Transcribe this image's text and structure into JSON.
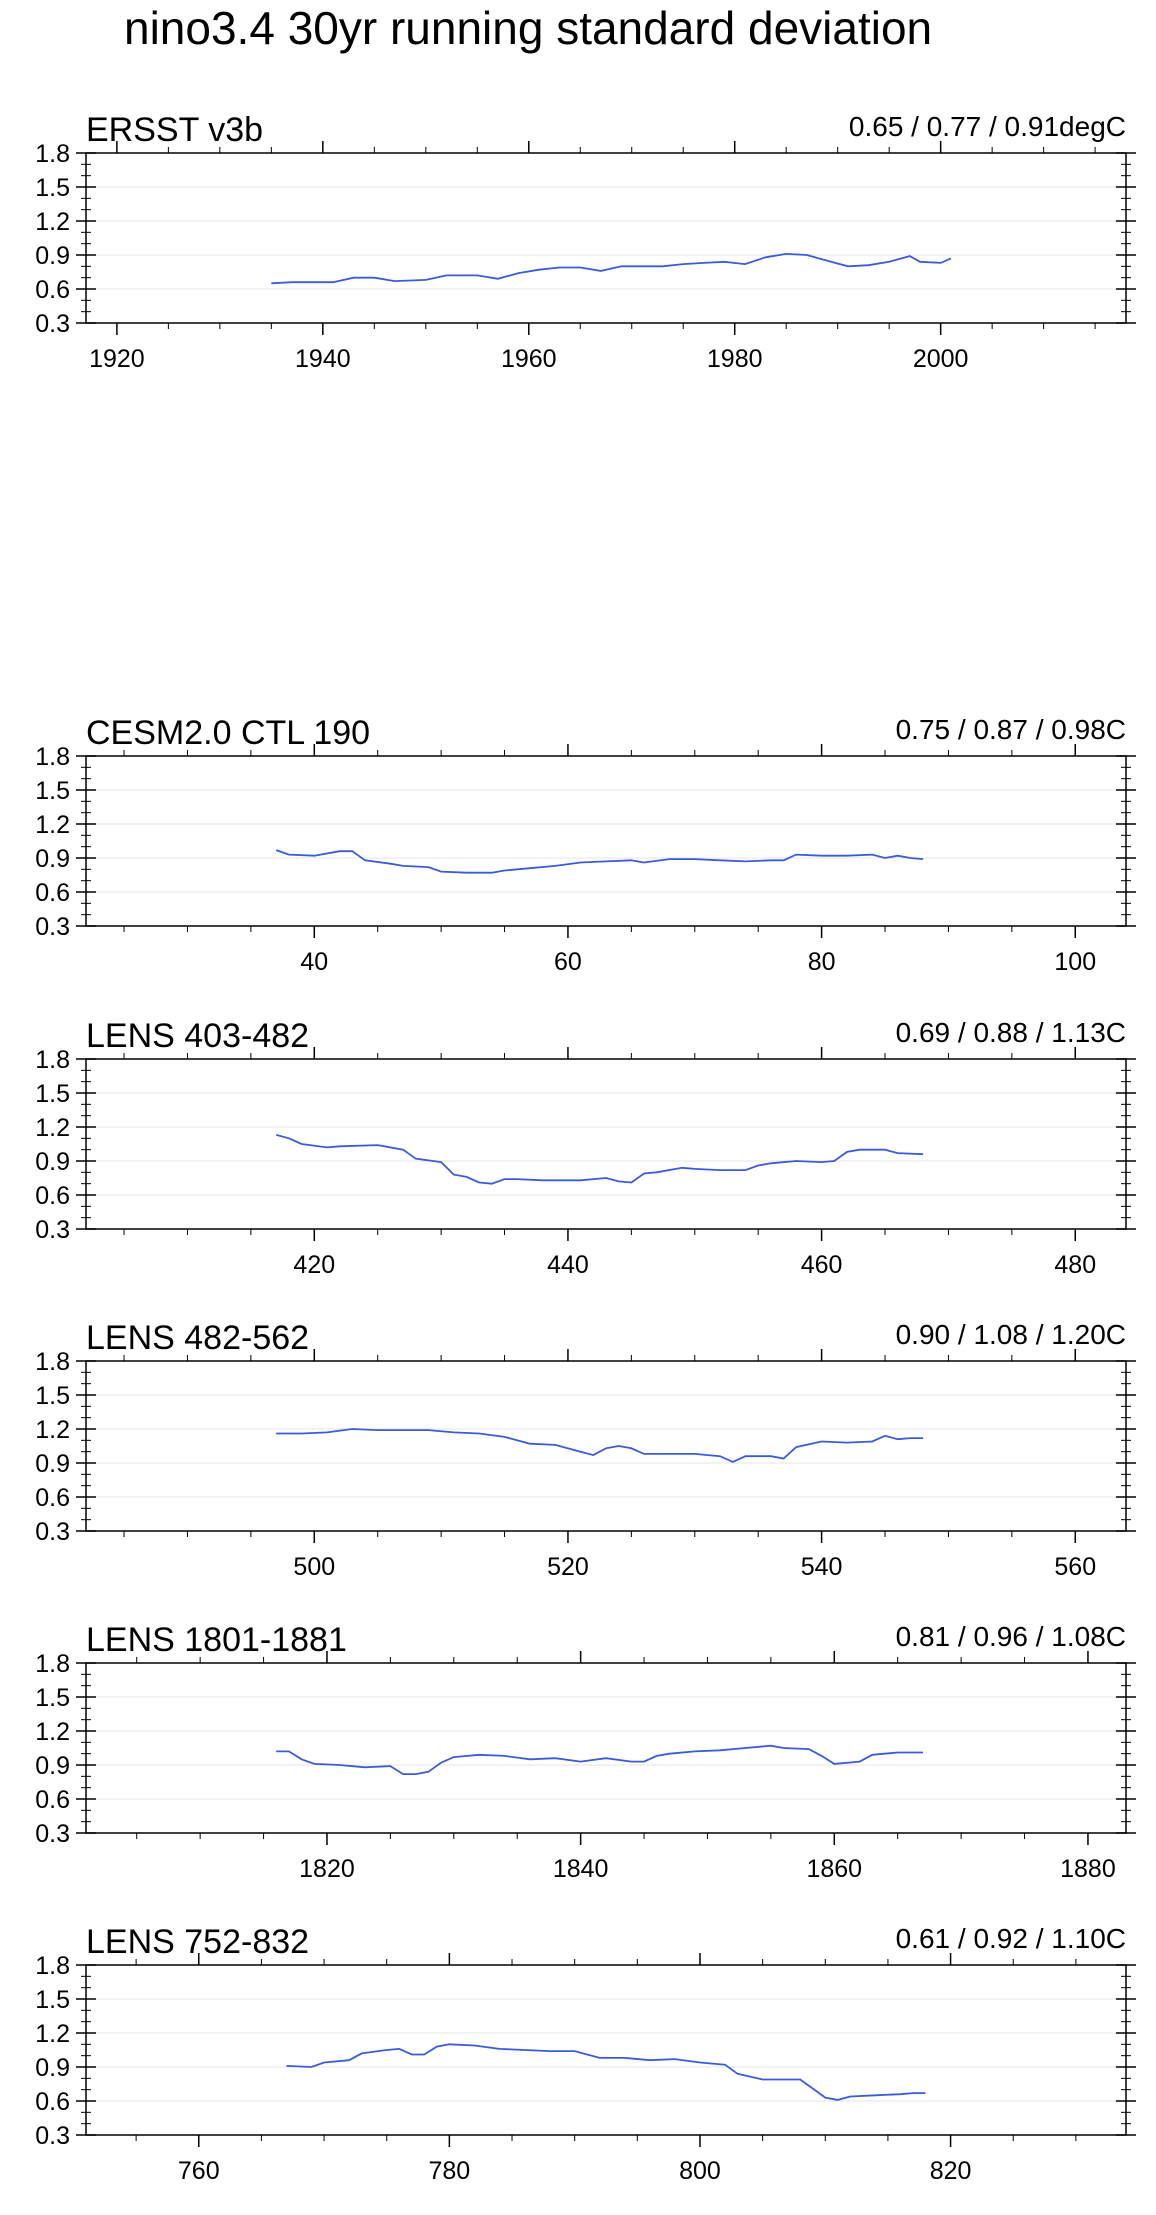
{
  "title": "nino3.4 30yr running standard deviation",
  "line_color": "#3b5bdb",
  "chart_data": [
    {
      "type": "line",
      "label_left": "ERSST v3b",
      "label_right": "0.65 / 0.77 / 0.91degC",
      "xlim": [
        1917,
        2018
      ],
      "ylim": [
        0.3,
        1.8
      ],
      "yticks": [
        "0.3",
        "0.6",
        "0.9",
        "1.2",
        "1.5",
        "1.8"
      ],
      "xticks": [
        1920,
        1940,
        1960,
        1980,
        2000
      ],
      "grid": true,
      "x": [
        1935,
        1937,
        1939,
        1941,
        1943,
        1945,
        1947,
        1950,
        1952,
        1955,
        1957,
        1959,
        1961,
        1963,
        1965,
        1967,
        1969,
        1971,
        1973,
        1975,
        1977,
        1979,
        1981,
        1983,
        1985,
        1987,
        1989,
        1991,
        1993,
        1995,
        1997,
        1998,
        2000,
        2001
      ],
      "y": [
        0.65,
        0.66,
        0.66,
        0.66,
        0.7,
        0.7,
        0.67,
        0.68,
        0.72,
        0.72,
        0.69,
        0.74,
        0.77,
        0.79,
        0.79,
        0.76,
        0.8,
        0.8,
        0.8,
        0.82,
        0.83,
        0.84,
        0.82,
        0.88,
        0.91,
        0.9,
        0.85,
        0.8,
        0.81,
        0.84,
        0.89,
        0.84,
        0.83,
        0.87
      ]
    },
    {
      "type": "line",
      "label_left": "CESM2.0 CTL 190",
      "label_right": "0.75 / 0.87 / 0.98C",
      "xlim": [
        22,
        104
      ],
      "ylim": [
        0.3,
        1.8
      ],
      "yticks": [
        "0.3",
        "0.6",
        "0.9",
        "1.2",
        "1.5",
        "1.8"
      ],
      "xticks": [
        40,
        60,
        80,
        100
      ],
      "grid": true,
      "x": [
        37,
        38,
        40,
        42,
        43,
        44,
        46,
        47,
        49,
        50,
        52,
        54,
        55,
        57,
        59,
        61,
        63,
        65,
        66,
        68,
        70,
        72,
        74,
        76,
        77,
        78,
        80,
        82,
        84,
        85,
        86,
        87,
        88
      ],
      "y": [
        0.97,
        0.93,
        0.92,
        0.96,
        0.96,
        0.88,
        0.85,
        0.83,
        0.82,
        0.78,
        0.77,
        0.77,
        0.79,
        0.81,
        0.83,
        0.86,
        0.87,
        0.88,
        0.86,
        0.89,
        0.89,
        0.88,
        0.87,
        0.88,
        0.88,
        0.93,
        0.92,
        0.92,
        0.93,
        0.9,
        0.92,
        0.9,
        0.89
      ]
    },
    {
      "type": "line",
      "label_left": "LENS 403-482",
      "label_right": "0.69 / 0.88 / 1.13C",
      "xlim": [
        402,
        484
      ],
      "ylim": [
        0.3,
        1.8
      ],
      "yticks": [
        "0.3",
        "0.6",
        "0.9",
        "1.2",
        "1.5",
        "1.8"
      ],
      "xticks": [
        420,
        440,
        460,
        480
      ],
      "grid": true,
      "x": [
        417,
        418,
        419,
        421,
        422,
        425,
        427,
        428,
        430,
        431,
        432,
        433,
        434,
        435,
        436,
        438,
        440,
        441,
        443,
        444,
        445,
        446,
        447,
        449,
        450,
        452,
        454,
        455,
        456,
        458,
        460,
        461,
        462,
        463,
        465,
        466,
        468
      ],
      "y": [
        1.13,
        1.1,
        1.05,
        1.02,
        1.03,
        1.04,
        1.0,
        0.92,
        0.89,
        0.78,
        0.76,
        0.71,
        0.7,
        0.74,
        0.74,
        0.73,
        0.73,
        0.73,
        0.75,
        0.72,
        0.71,
        0.79,
        0.8,
        0.84,
        0.83,
        0.82,
        0.82,
        0.86,
        0.88,
        0.9,
        0.89,
        0.9,
        0.98,
        1.0,
        1.0,
        0.97,
        0.96
      ]
    },
    {
      "type": "line",
      "label_left": "LENS 482-562",
      "label_right": "0.90 / 1.08 / 1.20C",
      "xlim": [
        482,
        564
      ],
      "ylim": [
        0.3,
        1.8
      ],
      "yticks": [
        "0.3",
        "0.6",
        "0.9",
        "1.2",
        "1.5",
        "1.8"
      ],
      "xticks": [
        500,
        520,
        540,
        560
      ],
      "grid": true,
      "x": [
        497,
        499,
        501,
        503,
        505,
        507,
        509,
        511,
        513,
        515,
        517,
        519,
        521,
        522,
        523,
        524,
        525,
        526,
        528,
        530,
        532,
        533,
        534,
        536,
        537,
        538,
        540,
        542,
        544,
        545,
        546,
        547,
        548
      ],
      "y": [
        1.16,
        1.16,
        1.17,
        1.2,
        1.19,
        1.19,
        1.19,
        1.17,
        1.16,
        1.13,
        1.07,
        1.06,
        1.0,
        0.97,
        1.03,
        1.05,
        1.03,
        0.98,
        0.98,
        0.98,
        0.96,
        0.91,
        0.96,
        0.96,
        0.94,
        1.04,
        1.09,
        1.08,
        1.09,
        1.14,
        1.11,
        1.12,
        1.12
      ]
    },
    {
      "type": "line",
      "label_left": "LENS 1801-1881",
      "label_right": "0.81 / 0.96 / 1.08C",
      "xlim": [
        1801,
        1883
      ],
      "ylim": [
        0.3,
        1.8
      ],
      "yticks": [
        "0.3",
        "0.6",
        "0.9",
        "1.2",
        "1.5",
        "1.8"
      ],
      "xticks": [
        1820,
        1840,
        1860,
        1880
      ],
      "grid": true,
      "x": [
        1816,
        1817,
        1818,
        1819,
        1821,
        1823,
        1825,
        1826,
        1827,
        1828,
        1829,
        1830,
        1832,
        1834,
        1836,
        1838,
        1840,
        1842,
        1844,
        1845,
        1846,
        1847,
        1849,
        1851,
        1853,
        1855,
        1856,
        1858,
        1859,
        1860,
        1862,
        1863,
        1865,
        1867
      ],
      "y": [
        1.02,
        1.02,
        0.95,
        0.91,
        0.9,
        0.88,
        0.89,
        0.82,
        0.82,
        0.84,
        0.92,
        0.97,
        0.99,
        0.98,
        0.95,
        0.96,
        0.93,
        0.96,
        0.93,
        0.93,
        0.98,
        1.0,
        1.02,
        1.03,
        1.05,
        1.07,
        1.05,
        1.04,
        0.98,
        0.91,
        0.93,
        0.99,
        1.01,
        1.01
      ]
    },
    {
      "type": "line",
      "label_left": "LENS 752-832",
      "label_right": "0.61 / 0.92 / 1.10C",
      "xlim": [
        751,
        834
      ],
      "ylim": [
        0.3,
        1.8
      ],
      "yticks": [
        "0.3",
        "0.6",
        "0.9",
        "1.2",
        "1.5",
        "1.8"
      ],
      "xticks": [
        760,
        780,
        800,
        820
      ],
      "grid": true,
      "x": [
        767,
        769,
        770,
        772,
        773,
        775,
        776,
        777,
        778,
        779,
        780,
        782,
        784,
        786,
        788,
        790,
        792,
        794,
        796,
        798,
        800,
        802,
        803,
        805,
        807,
        808,
        809,
        810,
        811,
        812,
        814,
        816,
        817,
        818
      ],
      "y": [
        0.91,
        0.9,
        0.94,
        0.96,
        1.02,
        1.05,
        1.06,
        1.01,
        1.01,
        1.08,
        1.1,
        1.09,
        1.06,
        1.05,
        1.04,
        1.04,
        0.98,
        0.98,
        0.96,
        0.97,
        0.94,
        0.92,
        0.84,
        0.79,
        0.79,
        0.79,
        0.71,
        0.63,
        0.61,
        0.64,
        0.65,
        0.66,
        0.67,
        0.67
      ]
    }
  ]
}
